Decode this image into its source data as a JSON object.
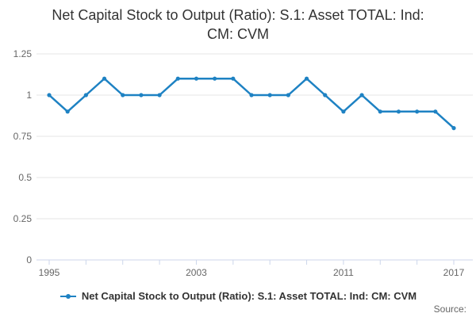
{
  "chart_data": {
    "type": "line",
    "title": "Net Capital Stock to Output (Ratio): S.1: Asset TOTAL: Ind: CM: CVM",
    "x": [
      1995,
      1996,
      1997,
      1998,
      1999,
      2000,
      2001,
      2002,
      2003,
      2004,
      2005,
      2006,
      2007,
      2008,
      2009,
      2010,
      2011,
      2012,
      2013,
      2014,
      2015,
      2016,
      2017
    ],
    "series": [
      {
        "name": "Net Capital Stock to Output (Ratio): S.1: Asset TOTAL: Ind: CM: CVM",
        "values": [
          1.0,
          0.9,
          1.0,
          1.1,
          1.0,
          1.0,
          1.0,
          1.1,
          1.1,
          1.1,
          1.1,
          1.0,
          1.0,
          1.0,
          1.1,
          1.0,
          0.9,
          1.0,
          0.9,
          0.9,
          0.9,
          0.9,
          0.8
        ]
      }
    ],
    "xlabel": "",
    "ylabel": "",
    "ylim": [
      0,
      1.25
    ],
    "yticks": [
      0,
      0.25,
      0.5,
      0.75,
      1,
      1.25
    ],
    "ytick_labels": [
      "0",
      "0.25",
      "0.5",
      "0.75",
      "1",
      "1.25"
    ],
    "xticks": [
      1995,
      1997,
      1999,
      2001,
      2003,
      2005,
      2007,
      2009,
      2011,
      2013,
      2015,
      2017
    ],
    "xtick_label_years": [
      1995,
      2003,
      2011,
      2017
    ],
    "xtick_labels": [
      "1995",
      "2003",
      "2011",
      "2017"
    ],
    "grid": true,
    "legend_position": "bottom"
  },
  "colors": {
    "line": "#1e82c3",
    "marker": "#1e82c3",
    "grid": "#e6e6e6",
    "axis": "#ccd6eb",
    "axis_label": "#666666",
    "title_text": "#333333",
    "legend_text": "#333333",
    "source_text": "#666666"
  },
  "footer": {
    "source_label": "Source:"
  }
}
